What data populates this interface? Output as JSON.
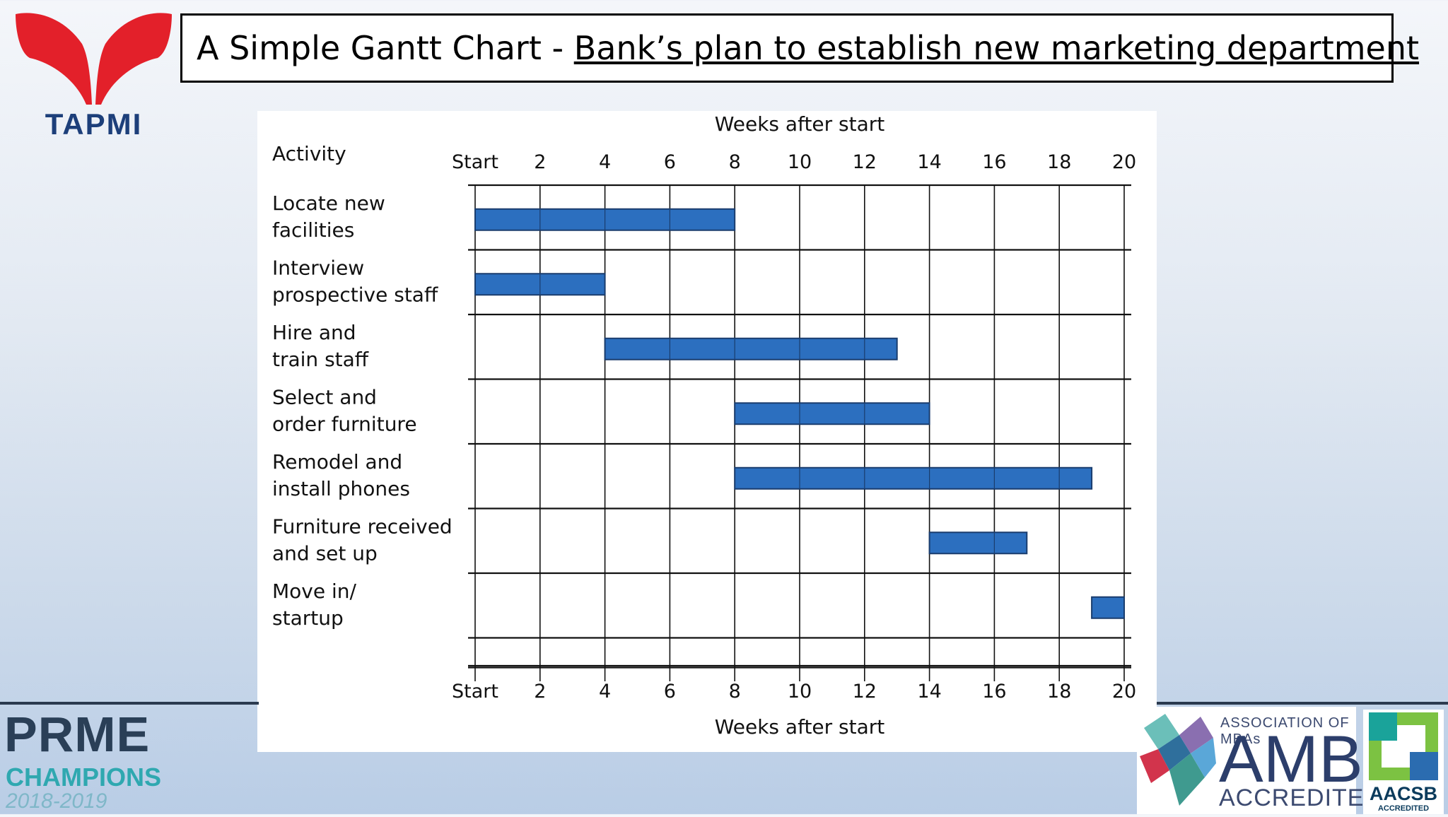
{
  "header": {
    "title_prefix": "A Simple Gantt Chart - ",
    "title_link": "Bank’s plan to establish new marketing department"
  },
  "logos": {
    "tapmi": "TAPMI",
    "prme_top": "PRME",
    "prme_mid": "CHAMPIONS",
    "prme_years": "2018-2019",
    "amba_top": "ASSOCIATION OF MBAs",
    "amba_name": "AMBA",
    "amba_bottom": "ACCREDITED",
    "aacsb": "AACSB",
    "aacsb_sub": "ACCREDITED"
  },
  "colors": {
    "bar_fill": "#2c6fbf",
    "bar_stroke": "#1a3d6e",
    "tapmi_red": "#e3202a",
    "tapmi_blue": "#1d3f7a"
  },
  "chart_data": {
    "type": "gantt",
    "title": "",
    "xlabel": "Weeks after start",
    "ylabel": "Activity",
    "x_range": [
      0,
      20
    ],
    "x_ticks": [
      {
        "value": 0,
        "label": "Start"
      },
      {
        "value": 2,
        "label": "2"
      },
      {
        "value": 4,
        "label": "4"
      },
      {
        "value": 6,
        "label": "6"
      },
      {
        "value": 8,
        "label": "8"
      },
      {
        "value": 10,
        "label": "10"
      },
      {
        "value": 12,
        "label": "12"
      },
      {
        "value": 14,
        "label": "14"
      },
      {
        "value": 16,
        "label": "16"
      },
      {
        "value": 18,
        "label": "18"
      },
      {
        "value": 20,
        "label": "20"
      }
    ],
    "grid": true,
    "tasks": [
      {
        "label_lines": [
          "Locate new",
          "facilities"
        ],
        "start": 0,
        "end": 8
      },
      {
        "label_lines": [
          "Interview",
          "prospective staff"
        ],
        "start": 0,
        "end": 4
      },
      {
        "label_lines": [
          "Hire and",
          "train staff"
        ],
        "start": 4,
        "end": 13
      },
      {
        "label_lines": [
          "Select and",
          "order furniture"
        ],
        "start": 8,
        "end": 14
      },
      {
        "label_lines": [
          "Remodel and",
          "install phones"
        ],
        "start": 8,
        "end": 19
      },
      {
        "label_lines": [
          "Furniture received",
          "and set up"
        ],
        "start": 14,
        "end": 17
      },
      {
        "label_lines": [
          "Move in/",
          "startup"
        ],
        "start": 19,
        "end": 20
      }
    ]
  }
}
